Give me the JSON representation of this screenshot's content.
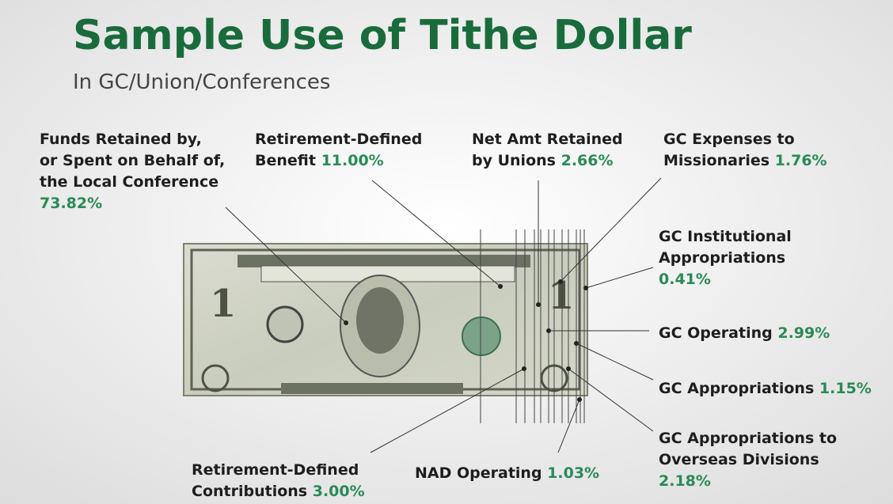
{
  "header": {
    "title": "Sample Use of Tithe Dollar",
    "subtitle": "In GC/Union/Conferences"
  },
  "items": [
    {
      "lines": [
        "Funds Retained by,",
        "or Spent on Behalf of,",
        "the Local Conference"
      ],
      "value": "73.82%",
      "value_inline": false
    },
    {
      "lines": [
        "Retirement-Defined",
        "Benefit"
      ],
      "value": "11.00%",
      "value_inline": true
    },
    {
      "lines": [
        "Net Amt Retained",
        "by Unions"
      ],
      "value": "2.66%",
      "value_inline": true
    },
    {
      "lines": [
        "GC Expenses to",
        "Missionaries"
      ],
      "value": "1.76%",
      "value_inline": true
    },
    {
      "lines": [
        "GC Institutional",
        "Appropriations"
      ],
      "value": "0.41%",
      "value_inline": false
    },
    {
      "lines": [
        "GC Operating"
      ],
      "value": "2.99%",
      "value_inline": true
    },
    {
      "lines": [
        "GC Appropriations"
      ],
      "value": "1.15%",
      "value_inline": true
    },
    {
      "lines": [
        "GC Appropriations  to",
        "Overseas Divisions"
      ],
      "value": "2.18%",
      "value_inline": false
    },
    {
      "lines": [
        "Retirement-Defined",
        "Contributions"
      ],
      "value": "3.00%",
      "value_inline": true
    },
    {
      "lines": [
        "NAD Operating"
      ],
      "value": "1.03%",
      "value_inline": true
    }
  ]
}
